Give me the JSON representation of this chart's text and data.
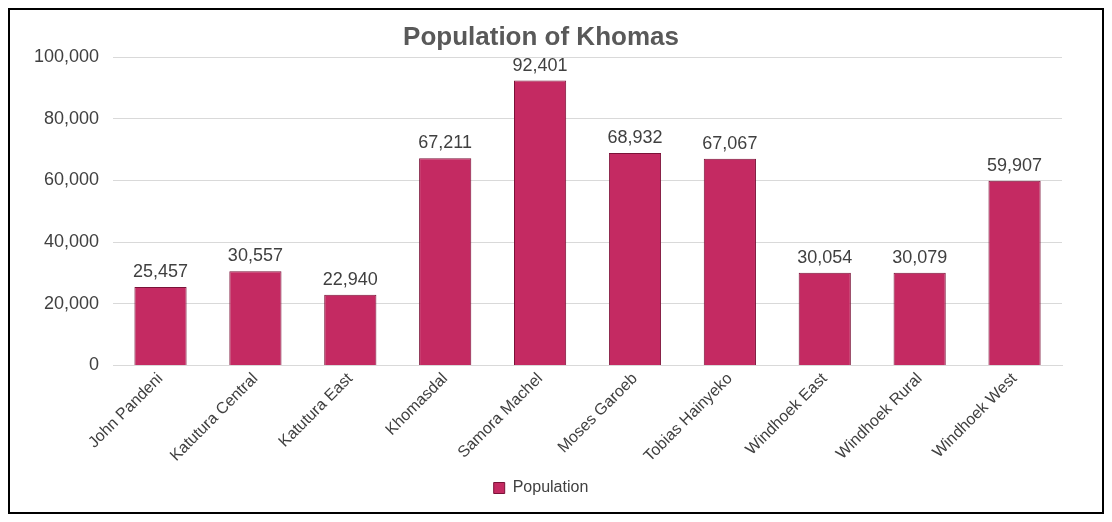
{
  "chart_data": {
    "type": "bar",
    "title": "Population of Khomas",
    "categories": [
      "John Pandeni",
      "Katutura Central",
      "Katutura East",
      "Khomasdal",
      "Samora Machel",
      "Moses Garoeb",
      "Tobias Hainyeko",
      "Windhoek East",
      "Windhoek Rural",
      "Windhoek West"
    ],
    "series": [
      {
        "name": "Population",
        "color": "#c42a62",
        "values": [
          25457,
          30557,
          22940,
          67211,
          92401,
          68932,
          67067,
          30054,
          30079,
          59907
        ],
        "value_labels": [
          "25,457",
          "30,557",
          "22,940",
          "67,211",
          "92,401",
          "68,932",
          "67,067",
          "30,054",
          "30,079",
          "59,907"
        ]
      }
    ],
    "ylim": [
      0,
      100000
    ],
    "yticks": [
      {
        "value": 0,
        "label": "0"
      },
      {
        "value": 20000,
        "label": "20,000"
      },
      {
        "value": 40000,
        "label": "40,000"
      },
      {
        "value": 60000,
        "label": "60,000"
      },
      {
        "value": 80000,
        "label": "80,000"
      },
      {
        "value": 100000,
        "label": "100,000"
      }
    ],
    "grid": "y",
    "legend": "bottom"
  }
}
